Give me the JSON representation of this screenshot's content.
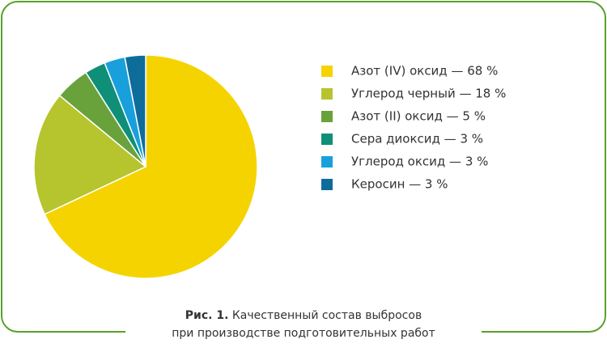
{
  "chart_data": {
    "type": "pie",
    "categories": [
      "Азот (IV) оксид — 68 %",
      "Углерод черный — 18 %",
      "Азот (II) оксид — 5 %",
      "Сера диоксид — 3 %",
      "Углерод оксид — 3 %",
      "Керосин — 3 %"
    ],
    "values": [
      68,
      18,
      5,
      3,
      3,
      3
    ],
    "colors": [
      "#f5d300",
      "#b6c42e",
      "#69a23b",
      "#0f8f78",
      "#19a0dc",
      "#0e6c9b"
    ],
    "caption_label": "Рис. 1.",
    "caption_lines": [
      "Качественный состав выбросов",
      "при производстве подготовительных работ"
    ]
  }
}
